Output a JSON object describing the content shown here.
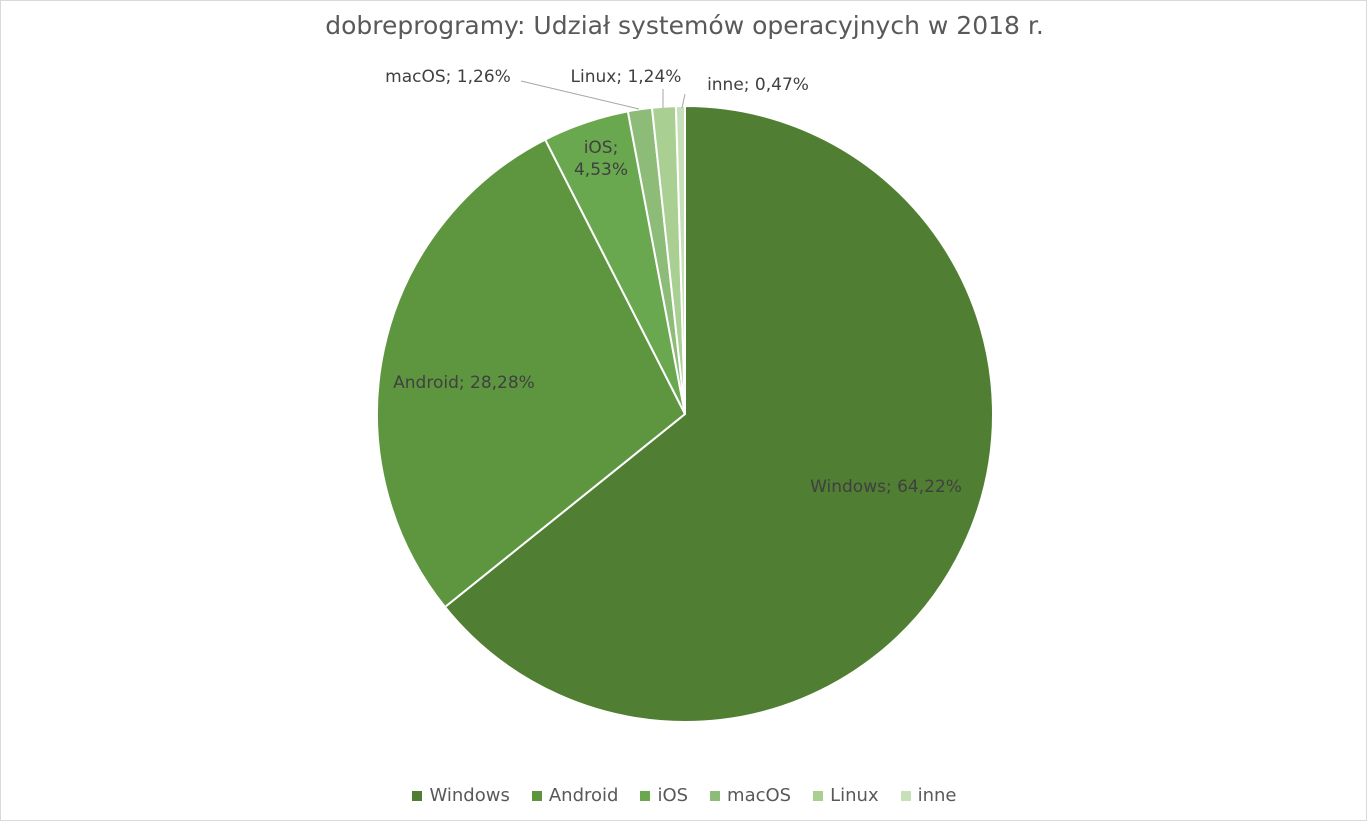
{
  "chart_data": {
    "type": "pie",
    "title": "dobreprogramy: Udział systemów operacyjnych w 2018 r.",
    "categories": [
      "Windows",
      "Android",
      "iOS",
      "macOS",
      "Linux",
      "inne"
    ],
    "values": [
      64.22,
      28.28,
      4.53,
      1.26,
      1.24,
      0.47
    ],
    "value_labels": [
      "Windows; 64,22%",
      "Android; 28,28%",
      "iOS; 4,53%",
      "macOS; 1,26%",
      "Linux; 1,24%",
      "inne; 0,47%"
    ],
    "colors": [
      "#507e32",
      "#5e9640",
      "#6aa84f",
      "#8dbb78",
      "#a9cf93",
      "#c8e0b8"
    ],
    "legend": "bottom"
  }
}
